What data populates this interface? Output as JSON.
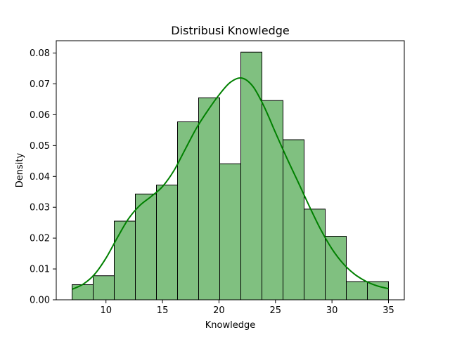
{
  "chart_data": {
    "type": "histogram",
    "title": "Distribusi Knowledge",
    "xlabel": "Knowledge",
    "ylabel": "Density",
    "xlim": [
      5.6,
      36.4
    ],
    "ylim": [
      0,
      0.084
    ],
    "x_ticks": [
      10,
      15,
      20,
      25,
      30,
      35
    ],
    "y_ticks": [
      0.0,
      0.01,
      0.02,
      0.03,
      0.04,
      0.05,
      0.06,
      0.07,
      0.08
    ],
    "bin_edges": [
      7.0,
      8.867,
      10.733,
      12.6,
      14.467,
      16.333,
      18.2,
      20.067,
      21.933,
      23.8,
      25.667,
      27.533,
      29.4,
      31.267,
      33.133,
      35.0
    ],
    "values": [
      0.0049,
      0.0078,
      0.0255,
      0.0343,
      0.0372,
      0.0577,
      0.0655,
      0.0441,
      0.0803,
      0.0646,
      0.0519,
      0.0294,
      0.0206,
      0.0059,
      0.0059
    ],
    "kde": {
      "x": [
        7,
        8,
        9,
        10,
        11,
        12,
        13,
        14,
        15,
        16,
        17,
        18,
        19,
        20,
        21,
        22,
        23,
        24,
        25,
        26,
        27,
        28,
        29,
        30,
        31,
        32,
        33,
        34,
        35
      ],
      "y": [
        0.0034,
        0.0051,
        0.0083,
        0.0135,
        0.0201,
        0.0263,
        0.0306,
        0.0335,
        0.0367,
        0.0418,
        0.0487,
        0.0556,
        0.0613,
        0.0664,
        0.0705,
        0.0719,
        0.0692,
        0.0626,
        0.0542,
        0.046,
        0.0382,
        0.0303,
        0.0228,
        0.0165,
        0.0117,
        0.0083,
        0.006,
        0.0045,
        0.0036
      ]
    },
    "colors": {
      "bar_fill": "#80c080",
      "bar_edge": "#000000",
      "kde_line": "#008000"
    }
  }
}
